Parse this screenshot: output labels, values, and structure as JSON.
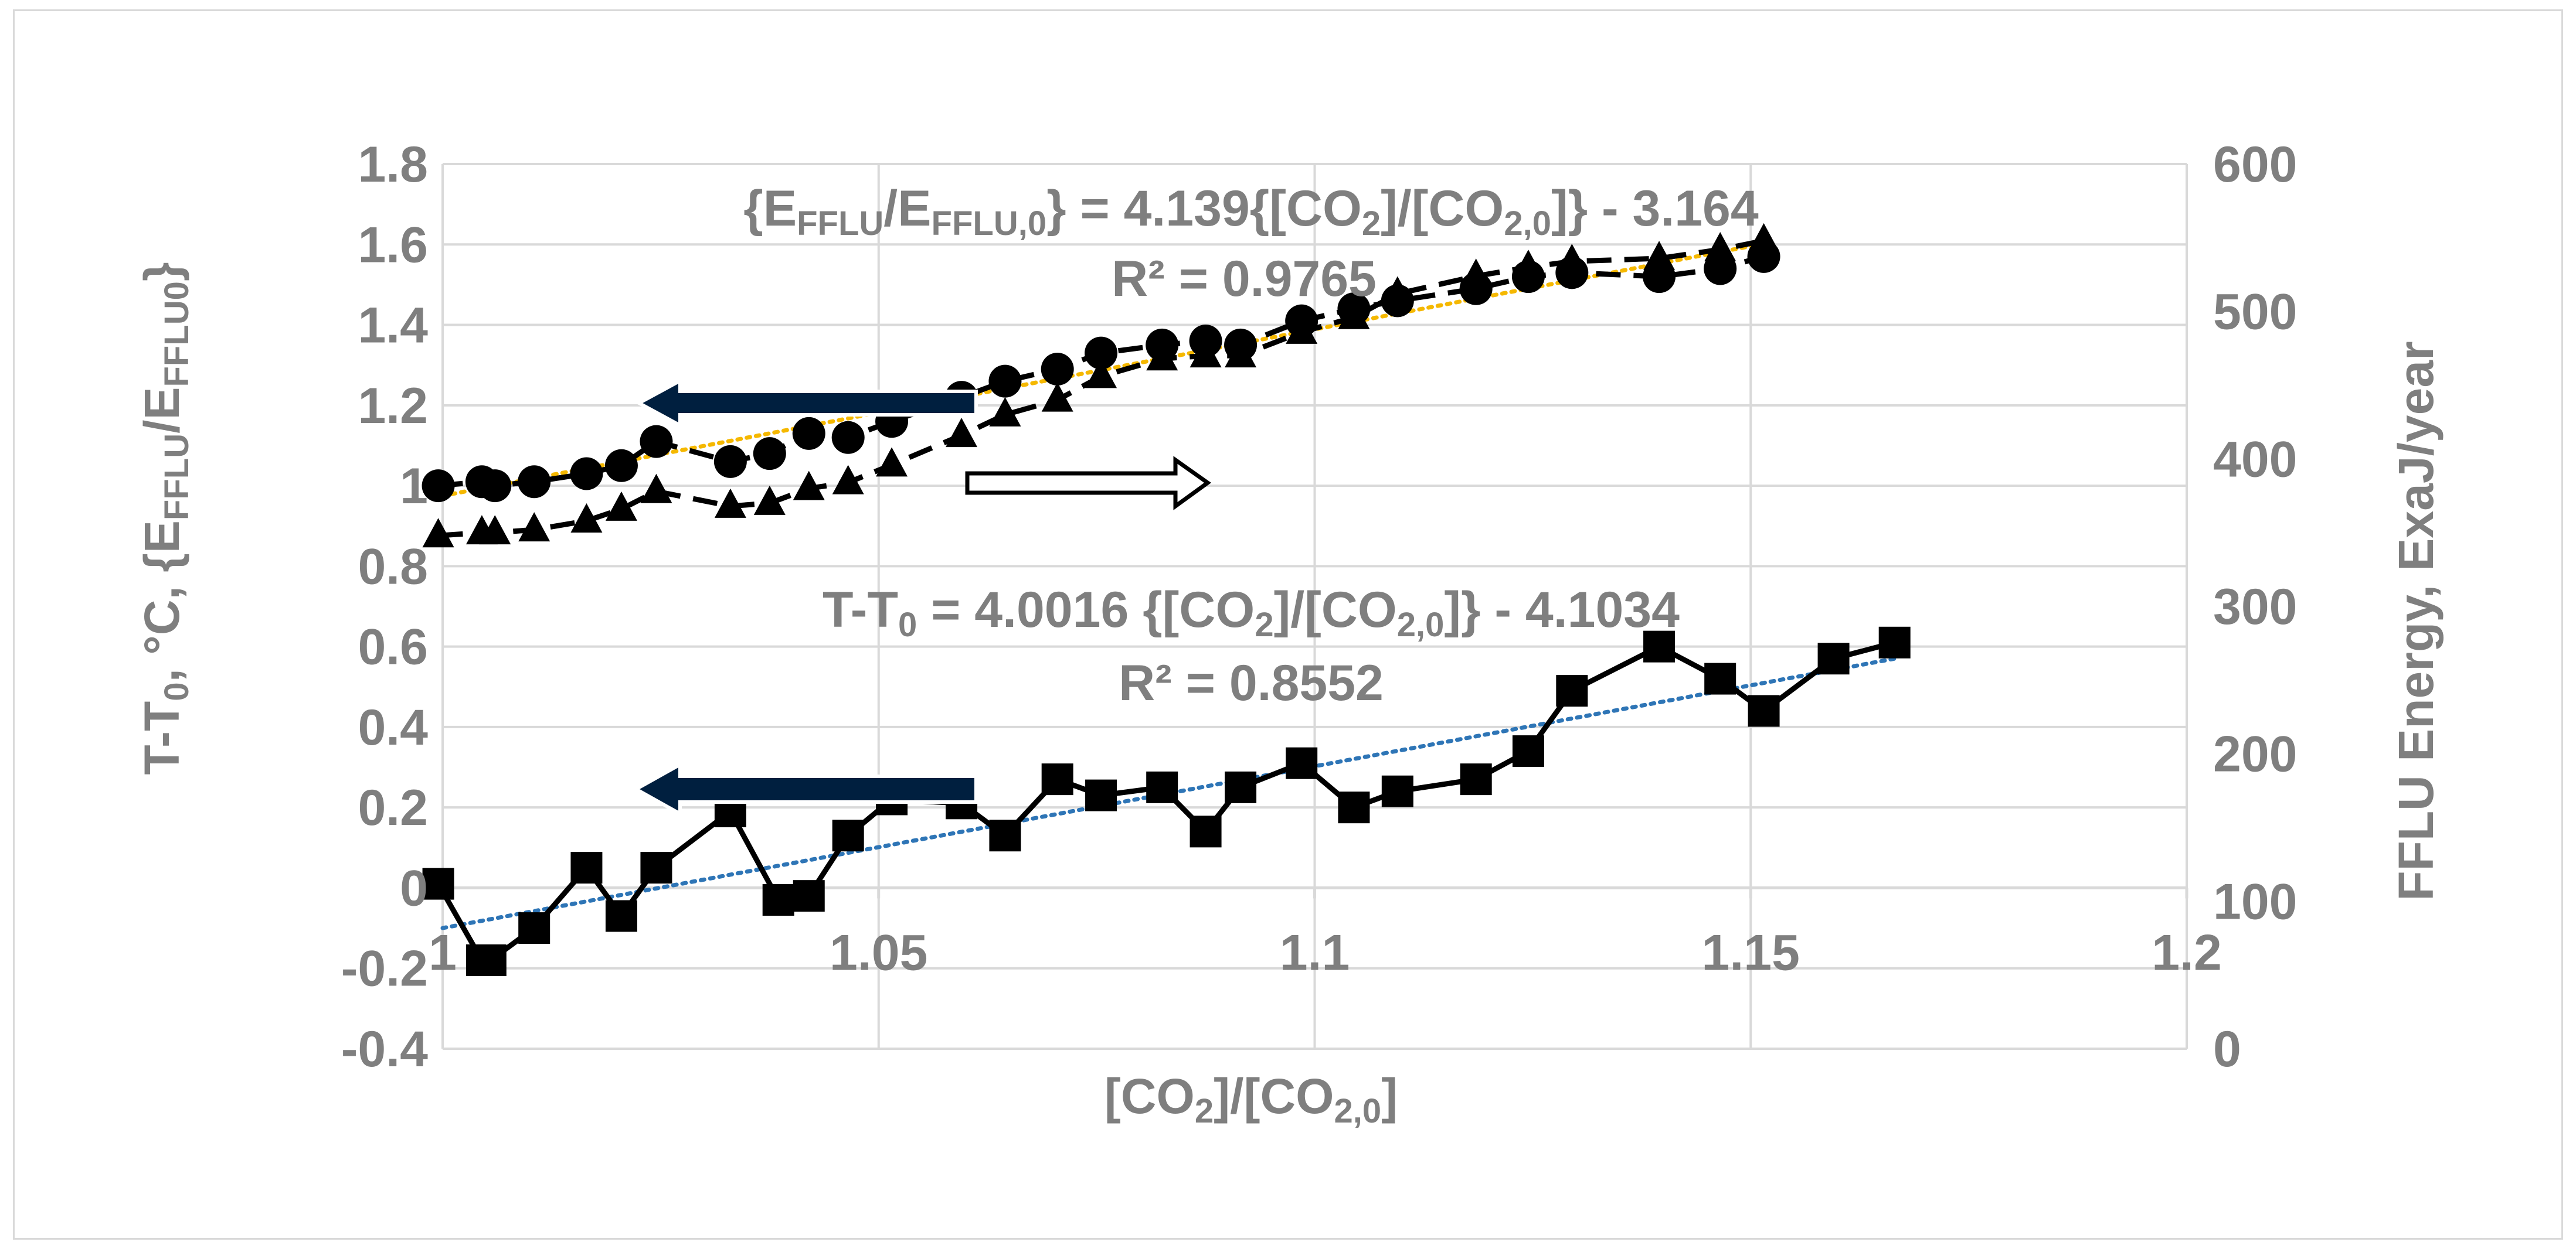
{
  "chart_data": {
    "type": "line",
    "xlabel": "[CO2]/[CO2,0]",
    "xlim": [
      1,
      1.2
    ],
    "x_ticks": [
      "1",
      "1.05",
      "1.1",
      "1.15",
      "1.2"
    ],
    "ylabel_left": "T-T0, °C,   {EFFLU/EFFLU0}",
    "ylim_left": [
      -0.4,
      1.8
    ],
    "y_ticks_left": [
      "-0.4",
      "-0.2",
      "0",
      "0.2",
      "0.4",
      "0.6",
      "0.8",
      "1",
      "1.2",
      "1.4",
      "1.6",
      "1.8"
    ],
    "ylabel_right": "FFLU Energy,  ExaJ/year",
    "ylim_right": [
      0,
      600
    ],
    "y_ticks_right": [
      "0",
      "100",
      "200",
      "300",
      "400",
      "500",
      "600"
    ],
    "grid": true,
    "annotations": {
      "eq_energy": "{EFFLU/EFFLU,0} = 4.139{[CO2]/[CO2,0]} - 3.164",
      "r2_energy": "R² = 0.9765",
      "eq_temp": "T-T0 = 4.0016 {[CO2]/[CO2,0]}  - 4.1034",
      "r2_temp": "R² = 0.8552"
    },
    "colors": {
      "text": "#7f7f7f",
      "series": "#000000",
      "trend_energy": "#f5b800",
      "trend_temp": "#2e75b6",
      "arrow_fill": "#001f3f"
    },
    "series": [
      {
        "marker": "circle",
        "axis": "left",
        "line": "dashed",
        "x": [
          0.9995,
          1.0045,
          1.006,
          1.0105,
          1.0165,
          1.0205,
          1.0245,
          1.033,
          1.0375,
          1.042,
          1.0465,
          1.0515,
          1.0595,
          1.0645,
          1.0705,
          1.0755,
          1.0825,
          1.0875,
          1.0915,
          1.0985,
          1.1045,
          1.1095,
          1.1185,
          1.1245,
          1.1295,
          1.1395,
          1.1465,
          1.1515
        ],
        "y": [
          1.0,
          1.01,
          1.0,
          1.01,
          1.03,
          1.05,
          1.11,
          1.06,
          1.08,
          1.13,
          1.12,
          1.16,
          1.22,
          1.26,
          1.29,
          1.33,
          1.35,
          1.36,
          1.35,
          1.41,
          1.44,
          1.46,
          1.49,
          1.52,
          1.53,
          1.52,
          1.54,
          1.57
        ]
      },
      {
        "marker": "triangle",
        "axis": "right",
        "line": "dashed",
        "x": [
          0.9995,
          1.0045,
          1.006,
          1.0105,
          1.0165,
          1.0205,
          1.0245,
          1.033,
          1.0375,
          1.042,
          1.0465,
          1.0515,
          1.0595,
          1.0645,
          1.0705,
          1.0755,
          1.0825,
          1.0875,
          1.0915,
          1.0985,
          1.1045,
          1.1095,
          1.1185,
          1.1245,
          1.1295,
          1.1395,
          1.1465,
          1.1515
        ],
        "y": [
          348,
          350,
          350,
          352,
          358,
          366,
          378,
          368,
          370,
          380,
          384,
          396,
          416,
          430,
          440,
          456,
          468,
          470,
          470,
          486,
          496,
          512,
          524,
          530,
          534,
          536,
          542,
          548
        ]
      },
      {
        "marker": "square",
        "axis": "left",
        "line": "solid",
        "x": [
          0.9995,
          1.0045,
          1.0055,
          1.0105,
          1.0165,
          1.0205,
          1.0245,
          1.033,
          1.0385,
          1.042,
          1.0465,
          1.0515,
          1.0595,
          1.0645,
          1.0705,
          1.0755,
          1.0825,
          1.0875,
          1.0915,
          1.0985,
          1.1045,
          1.1095,
          1.1185,
          1.1245,
          1.1295,
          1.1395,
          1.1465,
          1.1515,
          1.1595,
          1.1665
        ],
        "y": [
          0.01,
          -0.18,
          -0.18,
          -0.1,
          0.05,
          -0.07,
          0.05,
          0.19,
          -0.03,
          -0.02,
          0.13,
          0.22,
          0.21,
          0.13,
          0.27,
          0.23,
          0.25,
          0.14,
          0.25,
          0.31,
          0.2,
          0.24,
          0.27,
          0.34,
          0.49,
          0.6,
          0.52,
          0.44,
          0.57,
          0.61
        ]
      }
    ],
    "trendlines": [
      {
        "axis": "left",
        "color": "#f5b800",
        "x": [
          1.0,
          1.151
        ],
        "y": [
          0.975,
          1.6
        ]
      },
      {
        "axis": "left",
        "color": "#2e75b6",
        "x": [
          1.0,
          1.1665
        ],
        "y": [
          -0.1,
          0.57
        ]
      }
    ]
  }
}
